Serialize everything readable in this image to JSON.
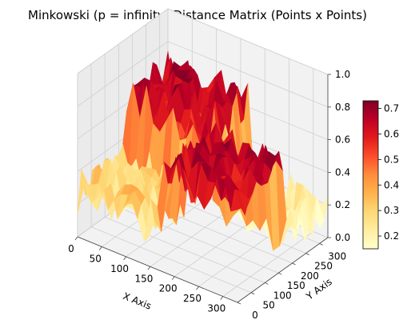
{
  "chart_data": {
    "type": "heatmap",
    "subtype": "3d-surface",
    "title": "Minkowski (p = infinity) Distance Matrix (Points x Points)",
    "xlabel": "X Axis",
    "ylabel": "Y Axis",
    "zlabel": "",
    "xlim": [
      0,
      330
    ],
    "ylim": [
      0,
      330
    ],
    "zlim": [
      0,
      1.0
    ],
    "x_ticks": [
      "0",
      "50",
      "100",
      "150",
      "200",
      "250",
      "300"
    ],
    "y_ticks": [
      "0",
      "50",
      "100",
      "150",
      "200",
      "250",
      "300"
    ],
    "z_ticks": [
      "0.0",
      "0.2",
      "0.4",
      "0.6",
      "0.8",
      "1.0"
    ],
    "colormap": "YlOrRd",
    "colorbar": {
      "range": [
        0.15,
        0.73
      ],
      "ticks": [
        "0.2",
        "0.3",
        "0.4",
        "0.5",
        "0.6",
        "0.7"
      ]
    },
    "grid": true,
    "blocks": [
      {
        "x_range": [
          0,
          165
        ],
        "y_range": [
          0,
          165
        ],
        "mean": 0.28
      },
      {
        "x_range": [
          165,
          330
        ],
        "y_range": [
          0,
          165
        ],
        "mean": 0.62
      },
      {
        "x_range": [
          0,
          165
        ],
        "y_range": [
          165,
          330
        ],
        "mean": 0.62
      },
      {
        "x_range": [
          165,
          330
        ],
        "y_range": [
          165,
          330
        ],
        "mean": 0.2
      }
    ]
  }
}
